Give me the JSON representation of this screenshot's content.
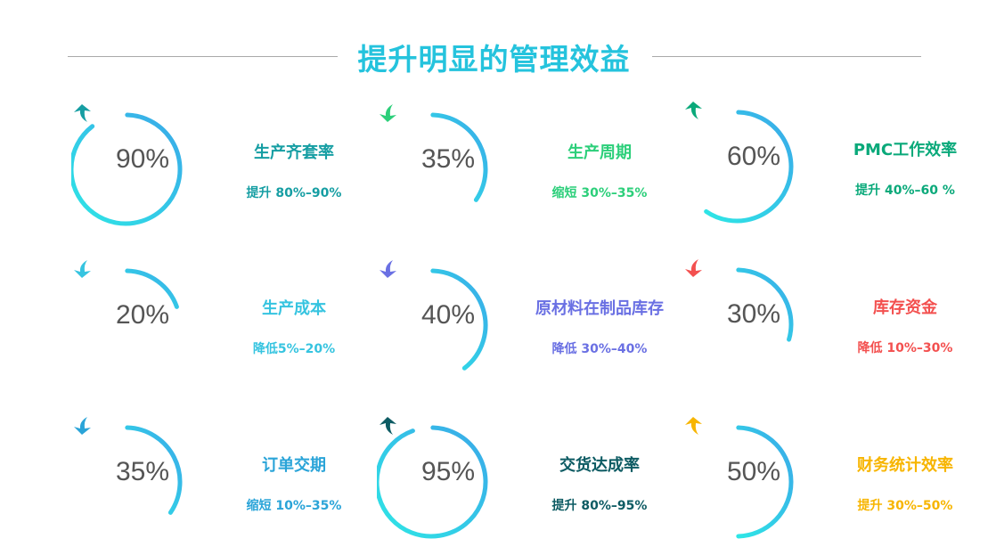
{
  "title": "提升明显的管理效益",
  "items": [
    {
      "percent": "90%",
      "value": 90,
      "name": "生产齐套率",
      "desc": "提升 80%–90%",
      "trend": "up",
      "color": "#169ea3"
    },
    {
      "percent": "35%",
      "value": 35,
      "name": "生产周期",
      "desc": "缩短 30%–35%",
      "trend": "down",
      "color": "#2ccf7a"
    },
    {
      "percent": "60%",
      "value": 60,
      "name": "PMC工作效率",
      "desc": "提升 40%–60 %",
      "trend": "up",
      "color": "#0aa97a"
    },
    {
      "percent": "20%",
      "value": 20,
      "name": "生产成本",
      "desc": "降低5%–20%",
      "trend": "down",
      "color": "#36c4e0"
    },
    {
      "percent": "40%",
      "value": 40,
      "name": "原材料在制品库存",
      "desc": "降低 30%–40%",
      "trend": "down",
      "color": "#6a70e3"
    },
    {
      "percent": "30%",
      "value": 30,
      "name": "库存资金",
      "desc": "降低 10%–30%",
      "trend": "down",
      "color": "#f3504f"
    },
    {
      "percent": "35%",
      "value": 35,
      "name": "订单交期",
      "desc": "缩短 10%–35%",
      "trend": "down",
      "color": "#2aa4d8"
    },
    {
      "percent": "95%",
      "value": 95,
      "name": "交货达成率",
      "desc": "提升 80%–95%",
      "trend": "up",
      "color": "#0d5b63"
    },
    {
      "percent": "50%",
      "value": 50,
      "name": "财务统计效率",
      "desc": "提升 30%–50%",
      "trend": "up",
      "color": "#f7b500"
    }
  ]
}
